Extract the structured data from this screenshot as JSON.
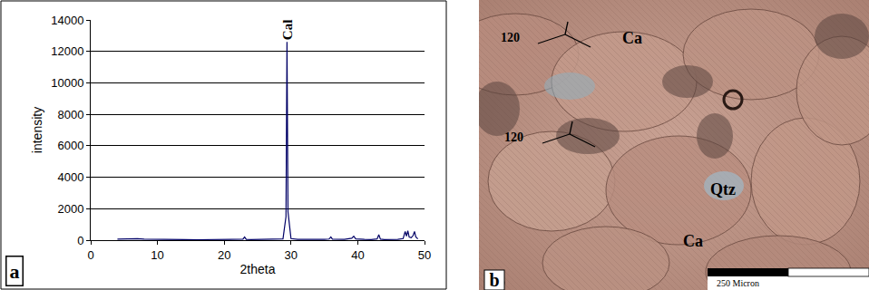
{
  "chart_data": {
    "type": "line",
    "x_label": "2theta",
    "y_label": "intensity",
    "x": [
      4,
      5,
      5.5,
      6,
      7,
      8,
      9,
      10,
      11,
      12,
      14,
      16,
      18,
      20,
      21,
      22,
      22.8,
      23.05,
      23.3,
      24,
      25,
      26,
      27,
      28,
      28.8,
      29.25,
      29.4,
      29.55,
      30,
      31,
      32,
      33,
      34,
      35,
      35.7,
      35.97,
      36.2,
      37,
      38,
      39.1,
      39.4,
      39.7,
      40.5,
      41,
      42,
      42.9,
      43.15,
      43.4,
      44,
      45,
      46,
      46.8,
      47.1,
      47.3,
      47.5,
      47.7,
      48,
      48.3,
      48.5,
      48.7,
      49
    ],
    "values": [
      60,
      80,
      100,
      70,
      90,
      60,
      50,
      60,
      40,
      40,
      40,
      30,
      30,
      30,
      40,
      40,
      60,
      200,
      50,
      40,
      40,
      40,
      40,
      50,
      80,
      1500,
      12600,
      1800,
      100,
      50,
      40,
      40,
      40,
      50,
      70,
      200,
      60,
      40,
      50,
      120,
      250,
      80,
      40,
      50,
      40,
      80,
      350,
      60,
      40,
      40,
      50,
      100,
      550,
      250,
      600,
      200,
      150,
      300,
      550,
      200,
      80
    ],
    "color": "#000066",
    "xlim": [
      0,
      50
    ],
    "xticks": [
      0,
      10,
      20,
      30,
      40,
      50
    ],
    "ylim": [
      0,
      14000
    ],
    "yticks": [
      0,
      2000,
      4000,
      6000,
      8000,
      10000,
      12000,
      14000
    ],
    "grid": true,
    "annotations": [
      {
        "text": "Cal",
        "x": 29.4,
        "y": 12600
      },
      {
        "text": "a"
      }
    ]
  },
  "photomicrograph": {
    "panel_label": "b",
    "labels": [
      "120",
      "Ca",
      "120",
      "Qtz",
      "Ca"
    ],
    "scale_bar": "250 Micron"
  }
}
